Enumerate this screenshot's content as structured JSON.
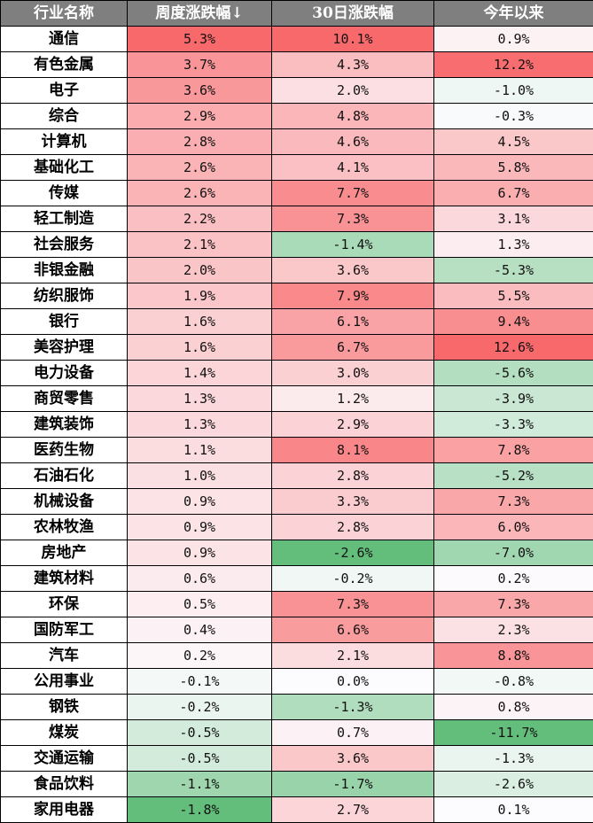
{
  "header": {
    "industry": "行业名称",
    "weekly": "周度涨跌幅↓",
    "d30": "30日涨跌幅",
    "ytd": "今年以来"
  },
  "colors": {
    "header_bg": "#7f7f7f",
    "header_text": "#ffffff",
    "positive_max": "#f8696b",
    "neutral": "#fcfcff",
    "negative_max": "#63be7b"
  },
  "rows": [
    {
      "name": "通信",
      "weekly": "5.3%",
      "d30": "10.1%",
      "ytd": "0.9%"
    },
    {
      "name": "有色金属",
      "weekly": "3.7%",
      "d30": "4.3%",
      "ytd": "12.2%"
    },
    {
      "name": "电子",
      "weekly": "3.6%",
      "d30": "2.0%",
      "ytd": "-1.0%"
    },
    {
      "name": "综合",
      "weekly": "2.9%",
      "d30": "4.8%",
      "ytd": "-0.3%"
    },
    {
      "name": "计算机",
      "weekly": "2.8%",
      "d30": "4.6%",
      "ytd": "4.5%"
    },
    {
      "name": "基础化工",
      "weekly": "2.6%",
      "d30": "4.1%",
      "ytd": "5.8%"
    },
    {
      "name": "传媒",
      "weekly": "2.6%",
      "d30": "7.7%",
      "ytd": "6.7%"
    },
    {
      "name": "轻工制造",
      "weekly": "2.2%",
      "d30": "7.3%",
      "ytd": "3.1%"
    },
    {
      "name": "社会服务",
      "weekly": "2.1%",
      "d30": "-1.4%",
      "ytd": "1.3%"
    },
    {
      "name": "非银金融",
      "weekly": "2.0%",
      "d30": "3.6%",
      "ytd": "-5.3%"
    },
    {
      "name": "纺织服饰",
      "weekly": "1.9%",
      "d30": "7.9%",
      "ytd": "5.5%"
    },
    {
      "name": "银行",
      "weekly": "1.6%",
      "d30": "6.1%",
      "ytd": "9.4%"
    },
    {
      "name": "美容护理",
      "weekly": "1.6%",
      "d30": "6.7%",
      "ytd": "12.6%"
    },
    {
      "name": "电力设备",
      "weekly": "1.4%",
      "d30": "3.0%",
      "ytd": "-5.6%"
    },
    {
      "name": "商贸零售",
      "weekly": "1.3%",
      "d30": "1.2%",
      "ytd": "-3.9%"
    },
    {
      "name": "建筑装饰",
      "weekly": "1.3%",
      "d30": "2.9%",
      "ytd": "-3.3%"
    },
    {
      "name": "医药生物",
      "weekly": "1.1%",
      "d30": "8.1%",
      "ytd": "7.8%"
    },
    {
      "name": "石油石化",
      "weekly": "1.0%",
      "d30": "2.8%",
      "ytd": "-5.2%"
    },
    {
      "name": "机械设备",
      "weekly": "0.9%",
      "d30": "3.3%",
      "ytd": "7.3%"
    },
    {
      "name": "农林牧渔",
      "weekly": "0.9%",
      "d30": "2.8%",
      "ytd": "6.0%"
    },
    {
      "name": "房地产",
      "weekly": "0.9%",
      "d30": "-2.6%",
      "ytd": "-7.0%"
    },
    {
      "name": "建筑材料",
      "weekly": "0.6%",
      "d30": "-0.2%",
      "ytd": "0.2%"
    },
    {
      "name": "环保",
      "weekly": "0.5%",
      "d30": "7.3%",
      "ytd": "7.3%"
    },
    {
      "name": "国防军工",
      "weekly": "0.4%",
      "d30": "6.6%",
      "ytd": "2.3%"
    },
    {
      "name": "汽车",
      "weekly": "0.2%",
      "d30": "2.1%",
      "ytd": "8.8%"
    },
    {
      "name": "公用事业",
      "weekly": "-0.1%",
      "d30": "0.0%",
      "ytd": "-0.8%"
    },
    {
      "name": "钢铁",
      "weekly": "-0.2%",
      "d30": "-1.3%",
      "ytd": "0.8%"
    },
    {
      "name": "煤炭",
      "weekly": "-0.5%",
      "d30": "0.7%",
      "ytd": "-11.7%"
    },
    {
      "name": "交通运输",
      "weekly": "-0.5%",
      "d30": "3.6%",
      "ytd": "-1.3%"
    },
    {
      "name": "食品饮料",
      "weekly": "-1.1%",
      "d30": "-1.7%",
      "ytd": "-2.6%"
    },
    {
      "name": "家用电器",
      "weekly": "-1.8%",
      "d30": "2.7%",
      "ytd": "0.1%"
    }
  ],
  "chart_data": {
    "type": "table",
    "title": "",
    "columns": [
      "行业名称",
      "周度涨跌幅↓",
      "30日涨跌幅",
      "今年以来"
    ],
    "categories": [
      "通信",
      "有色金属",
      "电子",
      "综合",
      "计算机",
      "基础化工",
      "传媒",
      "轻工制造",
      "社会服务",
      "非银金融",
      "纺织服饰",
      "银行",
      "美容护理",
      "电力设备",
      "商贸零售",
      "建筑装饰",
      "医药生物",
      "石油石化",
      "机械设备",
      "农林牧渔",
      "房地产",
      "建筑材料",
      "环保",
      "国防军工",
      "汽车",
      "公用事业",
      "钢铁",
      "煤炭",
      "交通运输",
      "食品饮料",
      "家用电器"
    ],
    "series": [
      {
        "name": "周度涨跌幅",
        "unit": "%",
        "values": [
          5.3,
          3.7,
          3.6,
          2.9,
          2.8,
          2.6,
          2.6,
          2.2,
          2.1,
          2.0,
          1.9,
          1.6,
          1.6,
          1.4,
          1.3,
          1.3,
          1.1,
          1.0,
          0.9,
          0.9,
          0.9,
          0.6,
          0.5,
          0.4,
          0.2,
          -0.1,
          -0.2,
          -0.5,
          -0.5,
          -1.1,
          -1.8
        ]
      },
      {
        "name": "30日涨跌幅",
        "unit": "%",
        "values": [
          10.1,
          4.3,
          2.0,
          4.8,
          4.6,
          4.1,
          7.7,
          7.3,
          -1.4,
          3.6,
          7.9,
          6.1,
          6.7,
          3.0,
          1.2,
          2.9,
          8.1,
          2.8,
          3.3,
          2.8,
          -2.6,
          -0.2,
          7.3,
          6.6,
          2.1,
          0.0,
          -1.3,
          0.7,
          3.6,
          -1.7,
          2.7
        ]
      },
      {
        "name": "今年以来",
        "unit": "%",
        "values": [
          0.9,
          12.2,
          -1.0,
          -0.3,
          4.5,
          5.8,
          6.7,
          3.1,
          1.3,
          -5.3,
          5.5,
          9.4,
          12.6,
          -5.6,
          -3.9,
          -3.3,
          7.8,
          -5.2,
          7.3,
          6.0,
          -7.0,
          0.2,
          7.3,
          2.3,
          8.8,
          -0.8,
          0.8,
          -11.7,
          -1.3,
          -2.6,
          0.1
        ]
      }
    ],
    "sort": {
      "column": "周度涨跌幅",
      "order": "descending"
    },
    "color_scale": {
      "min_color": "#63be7b",
      "mid_color": "#fcfcff",
      "max_color": "#f8696b",
      "mid_value": 0
    }
  }
}
